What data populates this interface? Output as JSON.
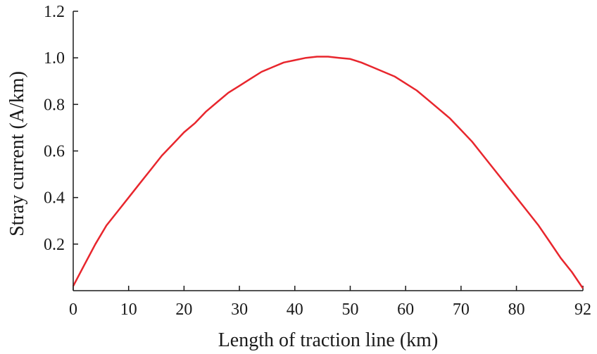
{
  "chart_data": {
    "type": "line",
    "title": "",
    "xlabel": "Length of traction line (km)",
    "ylabel": "Stray current (A/km)",
    "xlim": [
      0,
      92
    ],
    "ylim": [
      0,
      1.2
    ],
    "x_ticks": [
      0,
      10,
      20,
      30,
      40,
      50,
      60,
      70,
      80,
      92
    ],
    "x_tick_labels": [
      "0",
      "10",
      "20",
      "30",
      "40",
      "50",
      "60",
      "70",
      "80",
      "92"
    ],
    "y_ticks": [
      0.2,
      0.4,
      0.6,
      0.8,
      1.0,
      1.2
    ],
    "y_tick_labels": [
      "0.2",
      "0.4",
      "0.6",
      "0.8",
      "1.0",
      "1.2"
    ],
    "grid": false,
    "legend": "none",
    "series": [
      {
        "color": "#e8262d",
        "x": [
          0,
          2,
          4,
          6,
          8,
          10,
          12,
          14,
          16,
          18,
          20,
          22,
          24,
          26,
          28,
          30,
          32,
          34,
          36,
          38,
          40,
          42,
          44,
          46,
          48,
          50,
          52,
          54,
          56,
          58,
          60,
          62,
          64,
          66,
          68,
          70,
          72,
          74,
          76,
          78,
          80,
          82,
          84,
          86,
          88,
          90,
          92
        ],
        "y": [
          0.02,
          0.11,
          0.2,
          0.28,
          0.34,
          0.4,
          0.46,
          0.52,
          0.58,
          0.63,
          0.68,
          0.72,
          0.77,
          0.81,
          0.85,
          0.88,
          0.91,
          0.94,
          0.96,
          0.98,
          0.99,
          1.0,
          1.005,
          1.005,
          1.0,
          0.995,
          0.98,
          0.96,
          0.94,
          0.92,
          0.89,
          0.86,
          0.82,
          0.78,
          0.74,
          0.69,
          0.64,
          0.58,
          0.52,
          0.46,
          0.4,
          0.34,
          0.28,
          0.21,
          0.14,
          0.08,
          0.01
        ]
      }
    ]
  }
}
